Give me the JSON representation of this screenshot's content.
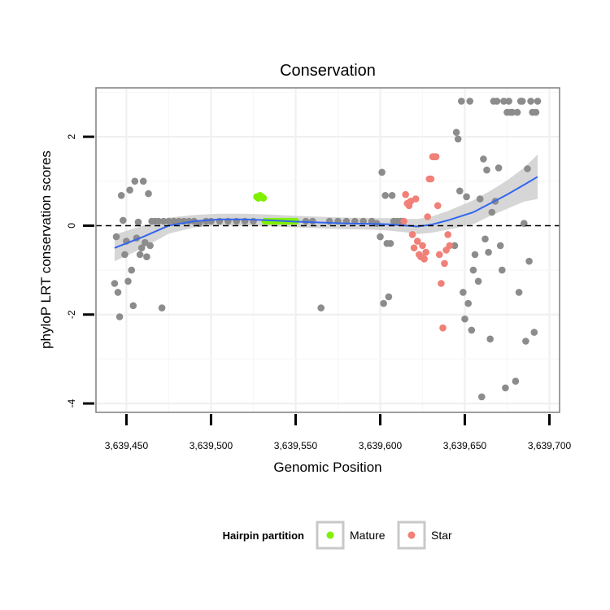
{
  "chart_data": {
    "type": "scatter",
    "title": "Conservation",
    "xlabel": "Genomic Position",
    "ylabel": "phyloP LRT conservation scores",
    "xlim": [
      3639432,
      3639706
    ],
    "ylim": [
      -4.2,
      3.1
    ],
    "x_ticks": [
      {
        "value": 3639450,
        "label": "3,639,450"
      },
      {
        "value": 3639500,
        "label": "3,639,500"
      },
      {
        "value": 3639550,
        "label": "3,639,550"
      },
      {
        "value": 3639600,
        "label": "3,639,600"
      },
      {
        "value": 3639650,
        "label": "3,639,650"
      },
      {
        "value": 3639700,
        "label": "3,639,700"
      }
    ],
    "y_ticks": [
      {
        "value": -4,
        "label": "-4"
      },
      {
        "value": -2,
        "label": "-2"
      },
      {
        "value": 0,
        "label": "0"
      },
      {
        "value": 2,
        "label": "2"
      }
    ],
    "reference_line": {
      "y": 0,
      "style": "dashed"
    },
    "legend": {
      "title": "Hairpin partition",
      "position": "bottom",
      "entries": [
        {
          "name": "Mature",
          "color": "#7ff000"
        },
        {
          "name": "Star",
          "color": "#f08078"
        }
      ]
    },
    "colors": {
      "other": "#8c8c8c",
      "mature": "#7ff000",
      "star": "#f08078",
      "smooth": "#3366ee",
      "band": "#cfcfcf"
    },
    "series": [
      {
        "name": "Other",
        "points": [
          [
            3639443,
            -1.3
          ],
          [
            3639444,
            -0.25
          ],
          [
            3639445,
            -1.5
          ],
          [
            3639446,
            -2.05
          ],
          [
            3639447,
            0.68
          ],
          [
            3639448,
            0.12
          ],
          [
            3639449,
            -0.65
          ],
          [
            3639450,
            -0.35
          ],
          [
            3639451,
            -1.25
          ],
          [
            3639452,
            0.8
          ],
          [
            3639453,
            -1.0
          ],
          [
            3639454,
            -1.8
          ],
          [
            3639455,
            1.0
          ],
          [
            3639456,
            -0.28
          ],
          [
            3639457,
            0.08
          ],
          [
            3639458,
            -0.65
          ],
          [
            3639459,
            -0.5
          ],
          [
            3639460,
            1.0
          ],
          [
            3639461,
            -0.38
          ],
          [
            3639462,
            -0.7
          ],
          [
            3639463,
            0.72
          ],
          [
            3639464,
            -0.45
          ],
          [
            3639465,
            0.1
          ],
          [
            3639467,
            0.1
          ],
          [
            3639469,
            0.1
          ],
          [
            3639471,
            -1.85
          ],
          [
            3639472,
            0.1
          ],
          [
            3639475,
            0.1
          ],
          [
            3639478,
            0.1
          ],
          [
            3639481,
            0.1
          ],
          [
            3639484,
            0.1
          ],
          [
            3639487,
            0.1
          ],
          [
            3639490,
            0.1
          ],
          [
            3639493,
            0.05
          ],
          [
            3639497,
            0.1
          ],
          [
            3639500,
            0.1
          ],
          [
            3639505,
            0.1
          ],
          [
            3639510,
            0.1
          ],
          [
            3639515,
            0.1
          ],
          [
            3639520,
            0.1
          ],
          [
            3639525,
            0.1
          ],
          [
            3639556,
            0.1
          ],
          [
            3639560,
            0.1
          ],
          [
            3639565,
            -1.85
          ],
          [
            3639570,
            0.1
          ],
          [
            3639575,
            0.1
          ],
          [
            3639580,
            0.1
          ],
          [
            3639585,
            0.1
          ],
          [
            3639590,
            0.1
          ],
          [
            3639595,
            0.1
          ],
          [
            3639598,
            0.05
          ],
          [
            3639600,
            -0.25
          ],
          [
            3639601,
            1.2
          ],
          [
            3639602,
            -1.75
          ],
          [
            3639603,
            0.68
          ],
          [
            3639604,
            -0.4
          ],
          [
            3639605,
            -1.6
          ],
          [
            3639606,
            -0.4
          ],
          [
            3639607,
            0.68
          ],
          [
            3639608,
            0.1
          ],
          [
            3639610,
            0.1
          ],
          [
            3639612,
            0.1
          ],
          [
            3639613,
            0.1
          ],
          [
            3639644,
            -0.45
          ],
          [
            3639645,
            2.1
          ],
          [
            3639646,
            1.95
          ],
          [
            3639647,
            0.78
          ],
          [
            3639648,
            2.8
          ],
          [
            3639649,
            -1.5
          ],
          [
            3639650,
            -2.1
          ],
          [
            3639651,
            0.65
          ],
          [
            3639652,
            -1.75
          ],
          [
            3639653,
            2.8
          ],
          [
            3639654,
            -2.35
          ],
          [
            3639655,
            -1.0
          ],
          [
            3639656,
            -0.65
          ],
          [
            3639658,
            -1.25
          ],
          [
            3639659,
            0.6
          ],
          [
            3639660,
            -3.85
          ],
          [
            3639661,
            1.5
          ],
          [
            3639662,
            -0.3
          ],
          [
            3639663,
            1.25
          ],
          [
            3639664,
            -0.6
          ],
          [
            3639665,
            -2.55
          ],
          [
            3639666,
            0.3
          ],
          [
            3639667,
            2.8
          ],
          [
            3639668,
            0.55
          ],
          [
            3639669,
            2.8
          ],
          [
            3639670,
            1.3
          ],
          [
            3639671,
            -0.45
          ],
          [
            3639672,
            -1.0
          ],
          [
            3639673,
            2.8
          ],
          [
            3639674,
            -3.65
          ],
          [
            3639675,
            2.55
          ],
          [
            3639676,
            2.8
          ],
          [
            3639677,
            2.55
          ],
          [
            3639678,
            2.55
          ],
          [
            3639680,
            -3.5
          ],
          [
            3639681,
            2.55
          ],
          [
            3639682,
            -1.5
          ],
          [
            3639683,
            2.8
          ],
          [
            3639684,
            2.8
          ],
          [
            3639685,
            0.05
          ],
          [
            3639686,
            -2.6
          ],
          [
            3639687,
            1.28
          ],
          [
            3639688,
            -0.8
          ],
          [
            3639689,
            2.8
          ],
          [
            3639690,
            2.55
          ],
          [
            3639691,
            -2.4
          ],
          [
            3639692,
            2.55
          ],
          [
            3639693,
            2.8
          ]
        ]
      },
      {
        "name": "Mature",
        "points": [
          [
            3639527,
            0.65
          ],
          [
            3639528,
            0.62
          ],
          [
            3639529,
            0.68
          ],
          [
            3639530,
            0.65
          ],
          [
            3639531,
            0.62
          ],
          [
            3639532,
            0.1
          ],
          [
            3639534,
            0.1
          ],
          [
            3639536,
            0.1
          ],
          [
            3639538,
            0.1
          ],
          [
            3639540,
            0.1
          ],
          [
            3639542,
            0.1
          ],
          [
            3639544,
            0.1
          ],
          [
            3639546,
            0.1
          ],
          [
            3639548,
            0.1
          ],
          [
            3639550,
            0.1
          ]
        ]
      },
      {
        "name": "Star",
        "points": [
          [
            3639614,
            0.1
          ],
          [
            3639615,
            0.7
          ],
          [
            3639616,
            0.5
          ],
          [
            3639617,
            0.45
          ],
          [
            3639618,
            0.55
          ],
          [
            3639619,
            -0.2
          ],
          [
            3639620,
            -0.5
          ],
          [
            3639621,
            0.6
          ],
          [
            3639622,
            -0.35
          ],
          [
            3639623,
            -0.65
          ],
          [
            3639624,
            -0.7
          ],
          [
            3639625,
            -0.45
          ],
          [
            3639626,
            -0.75
          ],
          [
            3639627,
            -0.6
          ],
          [
            3639628,
            0.2
          ],
          [
            3639629,
            1.05
          ],
          [
            3639630,
            1.05
          ],
          [
            3639631,
            1.55
          ],
          [
            3639632,
            1.55
          ],
          [
            3639633,
            1.55
          ],
          [
            3639634,
            0.45
          ],
          [
            3639635,
            -0.65
          ],
          [
            3639636,
            -1.3
          ],
          [
            3639637,
            -2.3
          ],
          [
            3639638,
            -0.85
          ],
          [
            3639639,
            -0.55
          ],
          [
            3639640,
            -0.2
          ],
          [
            3639641,
            -0.45
          ]
        ]
      }
    ],
    "smooth": {
      "label": "loess fit",
      "points": [
        [
          3639443,
          -0.5
        ],
        [
          3639460,
          -0.25
        ],
        [
          3639475,
          0.0
        ],
        [
          3639490,
          0.1
        ],
        [
          3639505,
          0.14
        ],
        [
          3639520,
          0.14
        ],
        [
          3639535,
          0.12
        ],
        [
          3639550,
          0.09
        ],
        [
          3639565,
          0.07
        ],
        [
          3639580,
          0.05
        ],
        [
          3639595,
          0.04
        ],
        [
          3639605,
          0.03
        ],
        [
          3639615,
          0.0
        ],
        [
          3639622,
          -0.02
        ],
        [
          3639630,
          0.02
        ],
        [
          3639640,
          0.12
        ],
        [
          3639655,
          0.3
        ],
        [
          3639665,
          0.5
        ],
        [
          3639675,
          0.7
        ],
        [
          3639685,
          0.92
        ],
        [
          3639693,
          1.1
        ]
      ],
      "se_upper": [
        [
          3639443,
          -0.2
        ],
        [
          3639460,
          0.0
        ],
        [
          3639475,
          0.18
        ],
        [
          3639490,
          0.24
        ],
        [
          3639505,
          0.27
        ],
        [
          3639520,
          0.27
        ],
        [
          3639535,
          0.25
        ],
        [
          3639550,
          0.22
        ],
        [
          3639565,
          0.2
        ],
        [
          3639580,
          0.18
        ],
        [
          3639595,
          0.17
        ],
        [
          3639605,
          0.17
        ],
        [
          3639615,
          0.15
        ],
        [
          3639622,
          0.15
        ],
        [
          3639630,
          0.2
        ],
        [
          3639640,
          0.33
        ],
        [
          3639655,
          0.57
        ],
        [
          3639665,
          0.78
        ],
        [
          3639675,
          1.02
        ],
        [
          3639685,
          1.3
        ],
        [
          3639693,
          1.6
        ]
      ],
      "se_lower": [
        [
          3639443,
          -0.8
        ],
        [
          3639460,
          -0.5
        ],
        [
          3639475,
          -0.18
        ],
        [
          3639490,
          -0.04
        ],
        [
          3639505,
          0.01
        ],
        [
          3639520,
          0.01
        ],
        [
          3639535,
          -0.01
        ],
        [
          3639550,
          -0.04
        ],
        [
          3639565,
          -0.06
        ],
        [
          3639580,
          -0.08
        ],
        [
          3639595,
          -0.09
        ],
        [
          3639605,
          -0.11
        ],
        [
          3639615,
          -0.15
        ],
        [
          3639622,
          -0.19
        ],
        [
          3639630,
          -0.16
        ],
        [
          3639640,
          -0.09
        ],
        [
          3639655,
          0.03
        ],
        [
          3639665,
          0.22
        ],
        [
          3639675,
          0.38
        ],
        [
          3639685,
          0.54
        ],
        [
          3639693,
          0.6
        ]
      ]
    }
  }
}
